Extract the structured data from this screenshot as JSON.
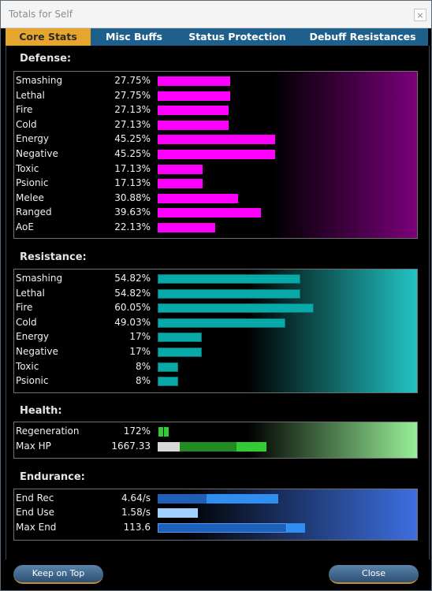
{
  "window": {
    "title": "Totals for Self",
    "close_glyph": "×"
  },
  "tabs": [
    {
      "label": "Core Stats",
      "active": true
    },
    {
      "label": "Misc Buffs",
      "active": false
    },
    {
      "label": "Status Protection",
      "active": false
    },
    {
      "label": "Debuff Resistances",
      "active": false
    }
  ],
  "colors": {
    "defense": "#ff00ff",
    "defense_bg": "#7a007a",
    "resistance": "#07a9a9",
    "resistance_bg": "#22c4c4",
    "health_dark": "#228b22",
    "health_light": "#32cd32",
    "health_gray": "#d8d8d8",
    "health_bg": "#98f098",
    "end_dark": "#1e5fb8",
    "end_mid": "#2f8ef0",
    "end_light": "#9fd0ff",
    "end_bg": "#3e6fe0"
  },
  "sections": {
    "defense": {
      "title": "Defense:",
      "rows": [
        {
          "label": "Smashing",
          "value": "27.75%",
          "pct": 27.75
        },
        {
          "label": "Lethal",
          "value": "27.75%",
          "pct": 27.75
        },
        {
          "label": "Fire",
          "value": "27.13%",
          "pct": 27.13
        },
        {
          "label": "Cold",
          "value": "27.13%",
          "pct": 27.13
        },
        {
          "label": "Energy",
          "value": "45.25%",
          "pct": 45.25
        },
        {
          "label": "Negative",
          "value": "45.25%",
          "pct": 45.25
        },
        {
          "label": "Toxic",
          "value": "17.13%",
          "pct": 17.13
        },
        {
          "label": "Psionic",
          "value": "17.13%",
          "pct": 17.13
        },
        {
          "label": "Melee",
          "value": "30.88%",
          "pct": 30.88
        },
        {
          "label": "Ranged",
          "value": "39.63%",
          "pct": 39.63
        },
        {
          "label": "AoE",
          "value": "22.13%",
          "pct": 22.13
        }
      ]
    },
    "resistance": {
      "title": "Resistance:",
      "rows": [
        {
          "label": "Smashing",
          "value": "54.82%",
          "pct": 54.82
        },
        {
          "label": "Lethal",
          "value": "54.82%",
          "pct": 54.82
        },
        {
          "label": "Fire",
          "value": "60.05%",
          "pct": 60.05
        },
        {
          "label": "Cold",
          "value": "49.03%",
          "pct": 49.03
        },
        {
          "label": "Energy",
          "value": "17%",
          "pct": 17
        },
        {
          "label": "Negative",
          "value": "17%",
          "pct": 17
        },
        {
          "label": "Toxic",
          "value": "8%",
          "pct": 8
        },
        {
          "label": "Psionic",
          "value": "8%",
          "pct": 8
        }
      ]
    },
    "health": {
      "title": "Health:",
      "regen": {
        "label": "Regeneration",
        "value": "172%"
      },
      "maxhp": {
        "label": "Max HP",
        "value": "1667.33"
      }
    },
    "endurance": {
      "title": "Endurance:",
      "rows": [
        {
          "label": "End Rec",
          "value": "4.64/s"
        },
        {
          "label": "End Use",
          "value": "1.58/s"
        },
        {
          "label": "Max End",
          "value": "113.6"
        }
      ]
    }
  },
  "buttons": {
    "keep_on_top": "Keep on Top",
    "close": "Close"
  }
}
